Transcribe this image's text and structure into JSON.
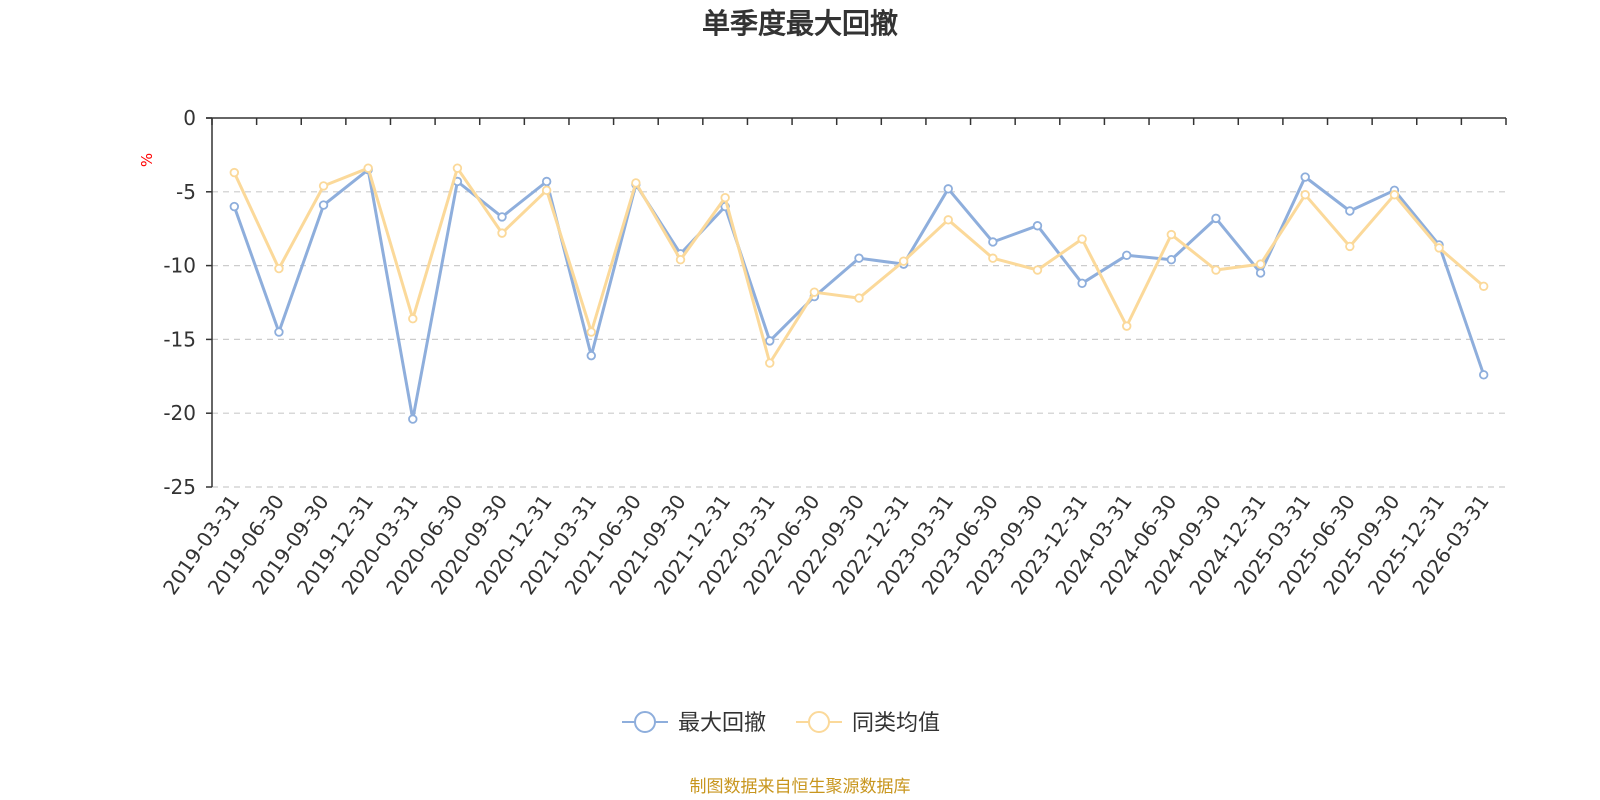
{
  "chart_data": {
    "type": "line",
    "title": "单季度最大回撤",
    "ylabel": "%",
    "xlabel": "",
    "ylim": [
      -25,
      0
    ],
    "yticks": [
      0,
      -5,
      -10,
      -15,
      -20,
      -25
    ],
    "grid": "horizontal dashed",
    "legend_position": "bottom-center",
    "categories": [
      "2019-03-31",
      "2019-06-30",
      "2019-09-30",
      "2019-12-31",
      "2020-03-31",
      "2020-06-30",
      "2020-09-30",
      "2020-12-31",
      "2021-03-31",
      "2021-06-30",
      "2021-09-30",
      "2021-12-31",
      "2022-03-31",
      "2022-06-30",
      "2022-09-30",
      "2022-12-31",
      "2023-03-31",
      "2023-06-30",
      "2023-09-30",
      "2023-12-31",
      "2024-03-31",
      "2024-06-30",
      "2024-09-30",
      "2024-12-31",
      "2025-03-31",
      "2025-06-30",
      "2025-09-30",
      "2025-12-31",
      "2026-03-31"
    ],
    "series": [
      {
        "name": "最大回撤",
        "color": "#8eaedc",
        "values": [
          -6.0,
          -14.5,
          -5.9,
          -3.5,
          -20.4,
          -4.3,
          -6.7,
          -4.3,
          -16.1,
          -4.5,
          -9.2,
          -6.0,
          -15.1,
          -12.1,
          -9.5,
          -9.9,
          -4.8,
          -8.4,
          -7.3,
          -11.2,
          -9.3,
          -9.6,
          -6.8,
          -10.5,
          -4.0,
          -6.3,
          -4.9,
          -8.6,
          -17.4
        ]
      },
      {
        "name": "同类均值",
        "color": "#fbd99a",
        "values": [
          -3.7,
          -10.2,
          -4.6,
          -3.4,
          -13.6,
          -3.4,
          -7.8,
          -4.9,
          -14.5,
          -4.4,
          -9.6,
          -5.4,
          -16.6,
          -11.8,
          -12.2,
          -9.7,
          -6.9,
          -9.5,
          -10.3,
          -8.2,
          -14.1,
          -7.9,
          -10.3,
          -9.9,
          -5.2,
          -8.7,
          -5.2,
          -8.8,
          -11.4
        ]
      }
    ]
  },
  "source_note": "制图数据来自恒生聚源数据库",
  "colors": {
    "axis": "#333333",
    "grid": "#cccccc",
    "source_text": "#c8961e",
    "unit_text": "#ff0000"
  }
}
